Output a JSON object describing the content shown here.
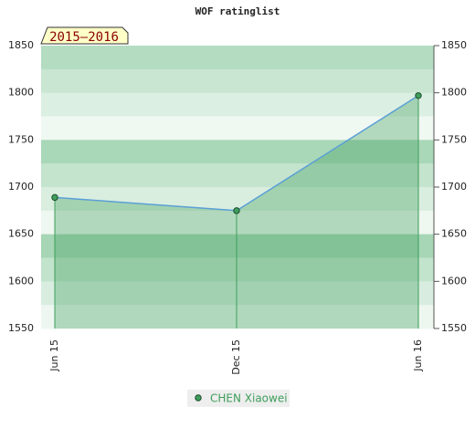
{
  "chart_data": {
    "type": "line",
    "title": "WOF ratinglist",
    "badge": "2015–2016",
    "categories": [
      "Jun 15",
      "Dec 15",
      "Jun 16"
    ],
    "series": [
      {
        "name": "CHEN Xiaowei",
        "color": "#3f9e5c",
        "line_color": "#5b9fd6",
        "values": [
          1689,
          1675,
          1797
        ]
      }
    ],
    "ylim": [
      1550,
      1850
    ],
    "yticks": [
      1550,
      1600,
      1650,
      1700,
      1750,
      1800,
      1850
    ]
  }
}
